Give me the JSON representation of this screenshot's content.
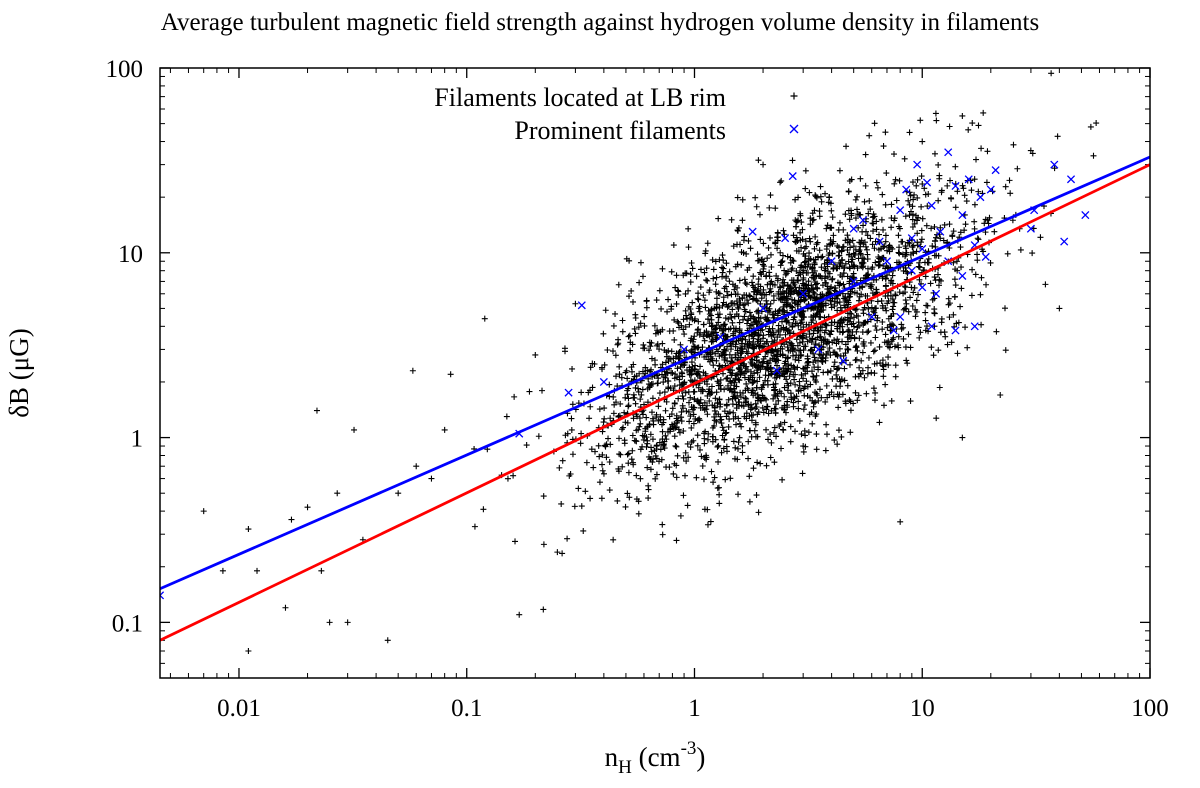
{
  "chart_data": {
    "type": "scatter",
    "title": "Average turbulent magnetic field strength against hydrogen volume density in filaments",
    "xlabel": {
      "base": "n",
      "sub": "H",
      "units_open": " (cm",
      "sup": "-3",
      "units_close": ")"
    },
    "ylabel": "δB (μG)",
    "x_scale": "log",
    "y_scale": "log",
    "xlim": [
      0.0045,
      100
    ],
    "ylim": [
      0.05,
      100
    ],
    "x_ticks": [
      0.01,
      0.1,
      1,
      10,
      100
    ],
    "x_tick_labels": [
      "0.01",
      "0.1",
      "1",
      "10",
      "100"
    ],
    "y_ticks": [
      0.1,
      1,
      10,
      100
    ],
    "y_tick_labels": [
      "0.1",
      "1",
      "10",
      "100"
    ],
    "legend_position": "top-right",
    "grid": false,
    "series": [
      {
        "name": "Filaments located at LB rim",
        "marker": "plus",
        "color": "#000000",
        "approx_count": 3000,
        "distribution": {
          "x_log10_mean": 0.38,
          "x_log10_sd": 0.4,
          "y_log10_intercept": 0.35,
          "y_log10_slope": 0.6,
          "y_log10_scatter_sd": 0.3
        },
        "points": [
          [
            0.007,
            0.4
          ],
          [
            0.0085,
            0.19
          ],
          [
            0.011,
            0.07
          ],
          [
            0.011,
            0.32
          ],
          [
            0.012,
            0.19
          ],
          [
            0.016,
            0.12
          ],
          [
            0.017,
            0.36
          ],
          [
            0.02,
            0.42
          ],
          [
            0.022,
            1.4
          ],
          [
            0.023,
            0.19
          ],
          [
            0.025,
            0.1
          ],
          [
            0.027,
            0.5
          ],
          [
            0.03,
            0.1
          ],
          [
            0.032,
            1.1
          ],
          [
            0.035,
            0.28
          ],
          [
            0.045,
            0.08
          ],
          [
            0.05,
            0.5
          ],
          [
            0.058,
            2.3
          ],
          [
            0.06,
            0.7
          ],
          [
            0.07,
            0.6
          ],
          [
            0.08,
            1.1
          ],
          [
            0.085,
            2.2
          ],
          [
            0.12,
            4.4
          ],
          [
            0.15,
            1.3
          ],
          [
            0.17,
            0.11
          ],
          [
            0.2,
            2.8
          ],
          [
            0.25,
            0.24
          ],
          [
            0.3,
            5.3
          ],
          [
            0.35,
            2.4
          ],
          [
            1.0,
            4.3
          ],
          [
            2.0,
            30
          ],
          [
            3.0,
            0.9
          ],
          [
            8.0,
            0.35
          ],
          [
            10,
            40
          ],
          [
            15,
            1.0
          ],
          [
            15,
            55
          ],
          [
            22,
            1.7
          ],
          [
            25,
            15
          ],
          [
            40,
            5
          ],
          [
            55,
            48
          ]
        ]
      },
      {
        "name": "Prominent filaments",
        "marker": "cross",
        "color": "#0000ff",
        "points": [
          [
            0.0045,
            0.14
          ],
          [
            0.17,
            1.05
          ],
          [
            0.28,
            1.75
          ],
          [
            0.32,
            5.2
          ],
          [
            0.4,
            2.0
          ],
          [
            0.9,
            3.0
          ],
          [
            1.3,
            3.5
          ],
          [
            1.8,
            13
          ],
          [
            2.0,
            5.0
          ],
          [
            2.3,
            2.3
          ],
          [
            2.5,
            12
          ],
          [
            2.7,
            26
          ],
          [
            3.0,
            6.0
          ],
          [
            3.5,
            3.0
          ],
          [
            4.0,
            9.0
          ],
          [
            4.5,
            2.6
          ],
          [
            5.0,
            7.0
          ],
          [
            5.0,
            13.5
          ],
          [
            5.5,
            15
          ],
          [
            6.0,
            4.5
          ],
          [
            6.5,
            11.5
          ],
          [
            7.0,
            9.0
          ],
          [
            7.5,
            3.8
          ],
          [
            8.0,
            4.5
          ],
          [
            8.0,
            17
          ],
          [
            8.5,
            22
          ],
          [
            9.0,
            8.0
          ],
          [
            9.0,
            12
          ],
          [
            9.5,
            30
          ],
          [
            10,
            6.5
          ],
          [
            10,
            10.5
          ],
          [
            10.5,
            24
          ],
          [
            11,
            4.0
          ],
          [
            11,
            18
          ],
          [
            11.5,
            6.0
          ],
          [
            12,
            13
          ],
          [
            13,
            35
          ],
          [
            13,
            9.0
          ],
          [
            14,
            23
          ],
          [
            14,
            3.8
          ],
          [
            15,
            7.5
          ],
          [
            15,
            16
          ],
          [
            16,
            25
          ],
          [
            17,
            11
          ],
          [
            17,
            4.0
          ],
          [
            18,
            20
          ],
          [
            19,
            9.5
          ],
          [
            20,
            22
          ],
          [
            21,
            28
          ],
          [
            30,
            13.5
          ],
          [
            31,
            17
          ],
          [
            38,
            30
          ],
          [
            42,
            11.5
          ],
          [
            45,
            25
          ],
          [
            52,
            16
          ]
        ]
      }
    ],
    "fit_lines": [
      {
        "color": "#ff0000",
        "x": [
          0.0045,
          100
        ],
        "y": [
          0.08,
          30
        ]
      },
      {
        "color": "#0000ff",
        "x": [
          0.0045,
          100
        ],
        "y": [
          0.152,
          33
        ]
      }
    ]
  }
}
